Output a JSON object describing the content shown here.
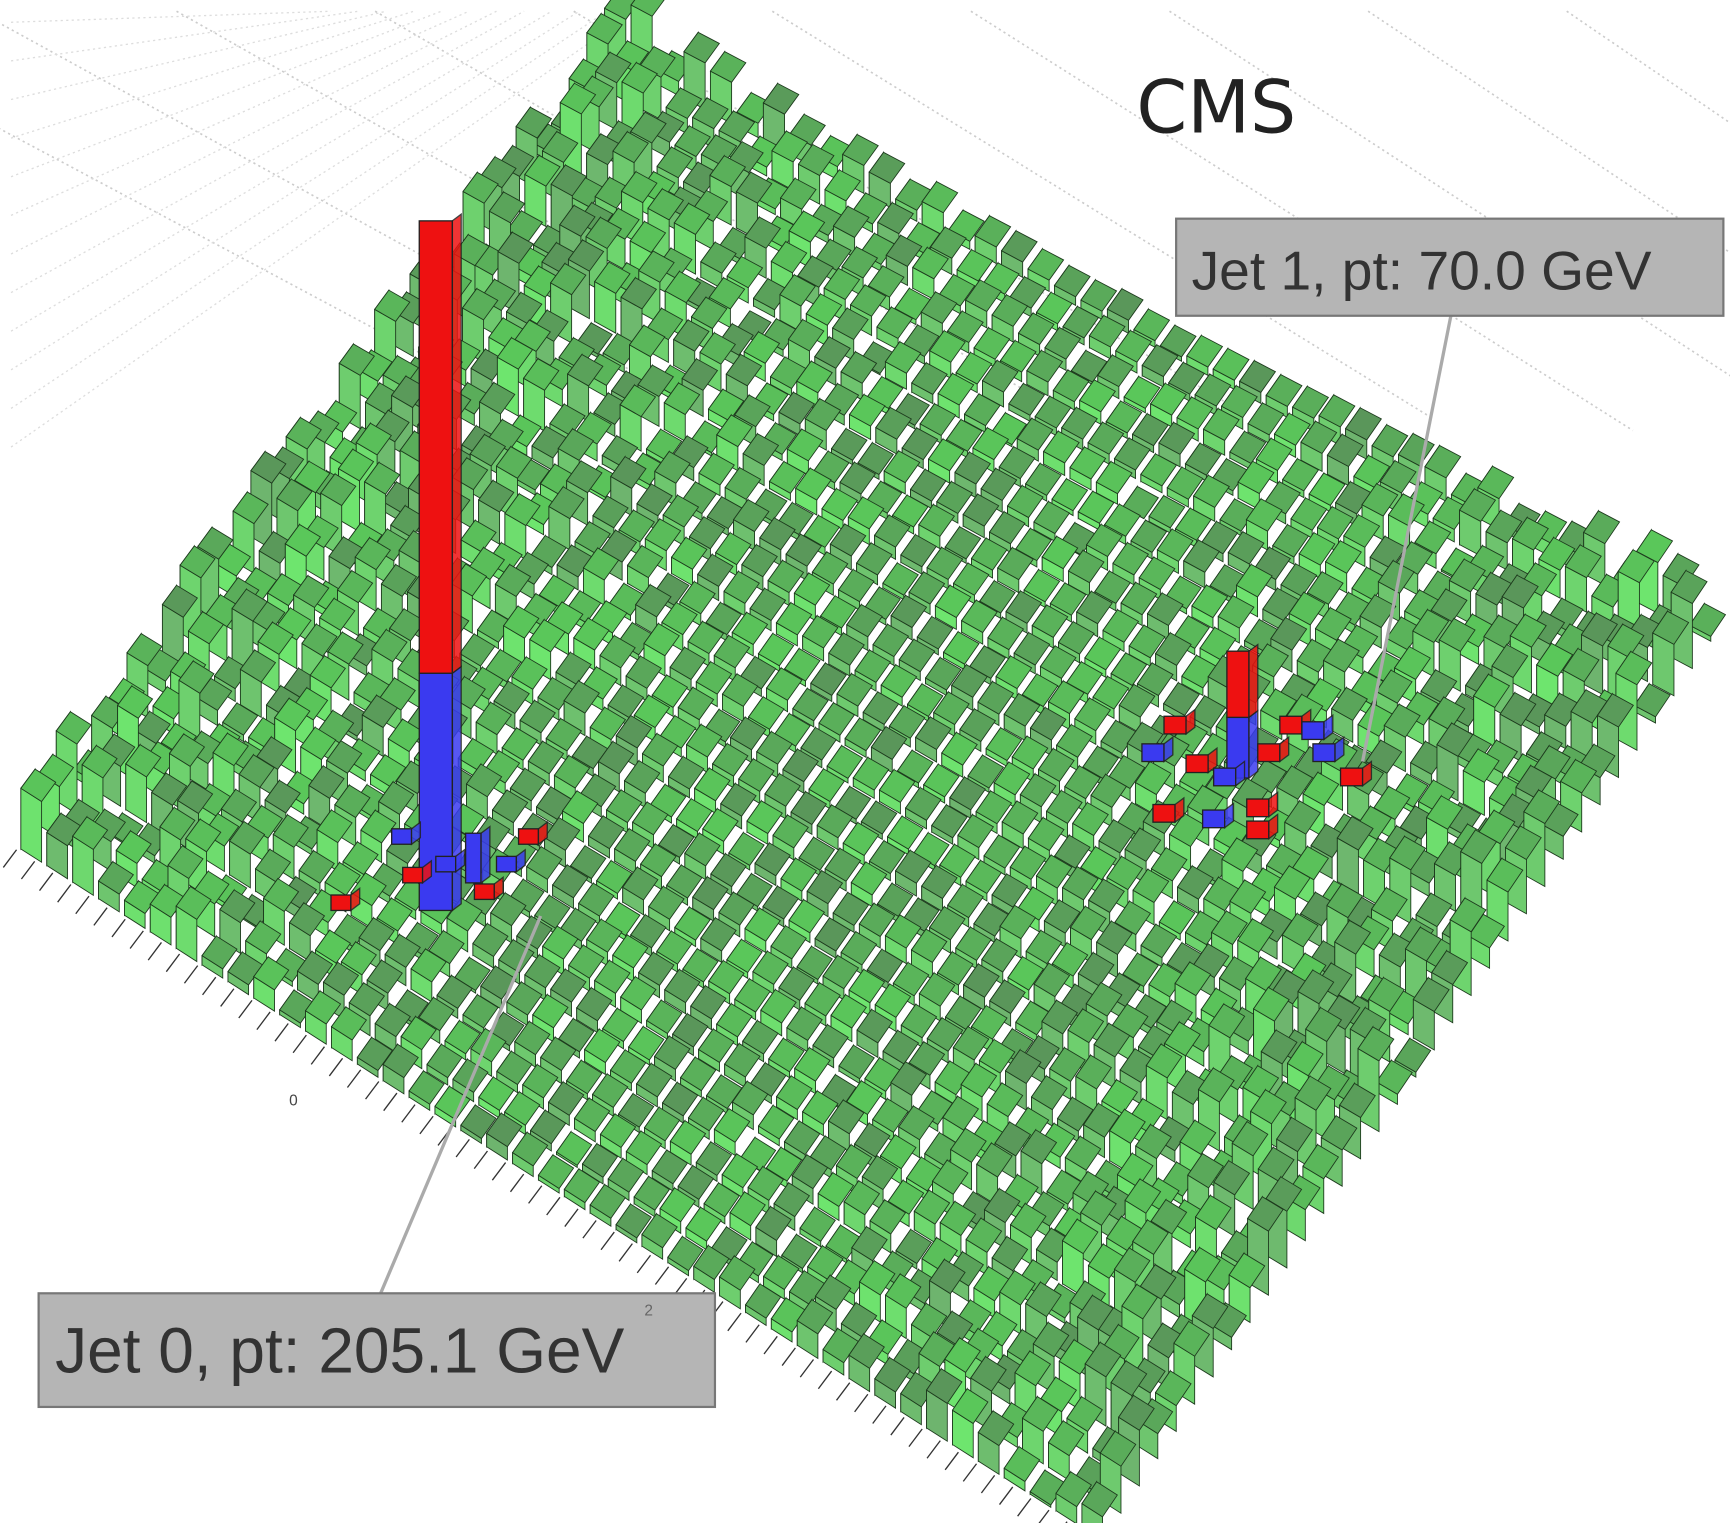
{
  "title": "CMS",
  "annotations": [
    {
      "label": "Jet 1, pt: 70.0 GeV"
    },
    {
      "label": "Jet 0, pt: 205.1 GeV"
    }
  ],
  "axis_labels": [
    "0",
    "2"
  ]
}
